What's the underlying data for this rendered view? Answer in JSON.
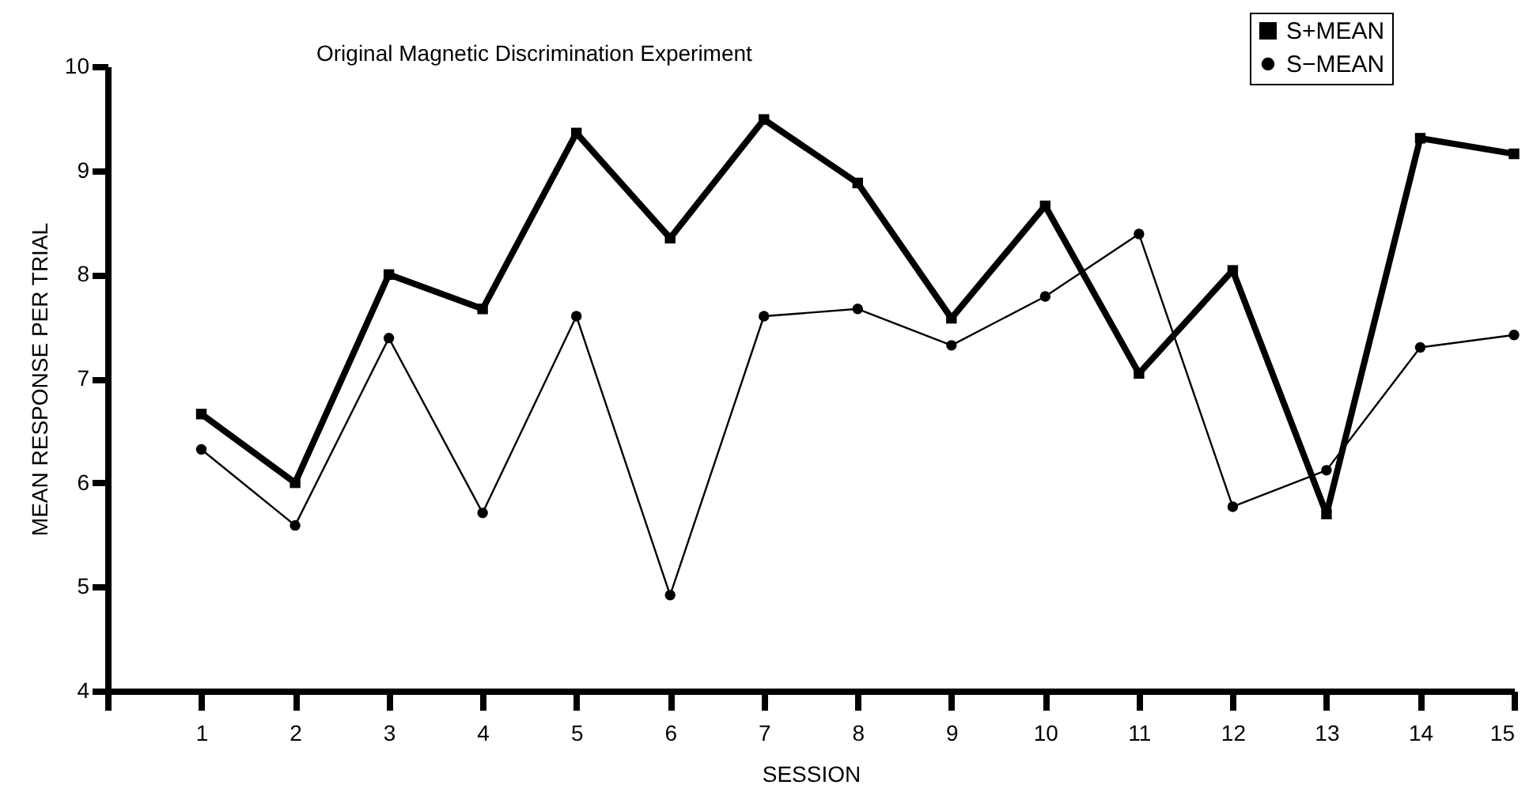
{
  "chart_data": {
    "type": "line",
    "title": "Original Magnetic Discrimination Experiment",
    "xlabel": "SESSION",
    "ylabel": "MEAN RESPONSE PER TRIAL",
    "x": [
      1,
      2,
      3,
      4,
      5,
      6,
      7,
      8,
      9,
      10,
      11,
      12,
      13,
      14,
      15
    ],
    "xlim": [
      0,
      15
    ],
    "xticks": [
      {
        "value": 0,
        "label": null
      },
      1,
      2,
      3,
      4,
      5,
      6,
      7,
      8,
      9,
      10,
      11,
      12,
      13,
      14,
      15
    ],
    "ylim": [
      4,
      10
    ],
    "yticks": [
      4,
      5,
      6,
      7,
      8,
      9,
      10
    ],
    "series": [
      {
        "name": "S+MEAN",
        "color": "#000000",
        "marker": "square",
        "values": [
          6.66,
          6.0,
          8.0,
          7.67,
          9.36,
          8.35,
          9.49,
          8.88,
          7.58,
          8.66,
          7.05,
          8.04,
          5.7,
          9.31,
          9.16
        ]
      },
      {
        "name": "S−MEAN",
        "color": "#000000",
        "marker": "circle",
        "values": [
          6.32,
          5.59,
          7.39,
          5.71,
          7.6,
          4.92,
          7.6,
          7.67,
          7.32,
          7.79,
          8.39,
          5.77,
          6.12,
          7.3,
          7.42
        ]
      }
    ],
    "grid": false,
    "legend": "top right",
    "line_style": "solid"
  }
}
